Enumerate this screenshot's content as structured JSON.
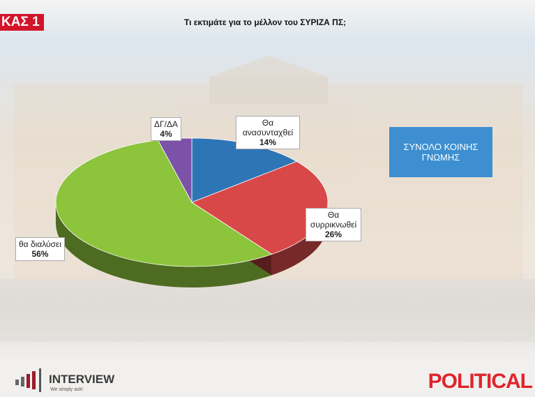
{
  "chart_data": {
    "type": "pie3d",
    "title": "Τι εκτιμάτε για το μέλλον του ΣΥΡΙΖΑ ΠΣ;",
    "tag": "ΚΑΣ 1",
    "note": "ΣΥΝΟΛΟ ΚΟΙΝΗΣ ΓΝΩΜΗΣ",
    "categories": [
      "Θα ανασυνταχθεί",
      "Θα συρρικνωθεί",
      "θα διαλύσει",
      "ΔΓ/ΔΑ"
    ],
    "values": [
      14,
      26,
      56,
      4
    ],
    "value_labels": [
      "14%",
      "26%",
      "56%",
      "4%"
    ],
    "colors": [
      "#2e75b6",
      "#d94848",
      "#8cc43c",
      "#7b52a8"
    ],
    "logo": {
      "name": "INTERVIEW",
      "slogan": "We simply ask!"
    },
    "brand": "POLITICAL"
  }
}
